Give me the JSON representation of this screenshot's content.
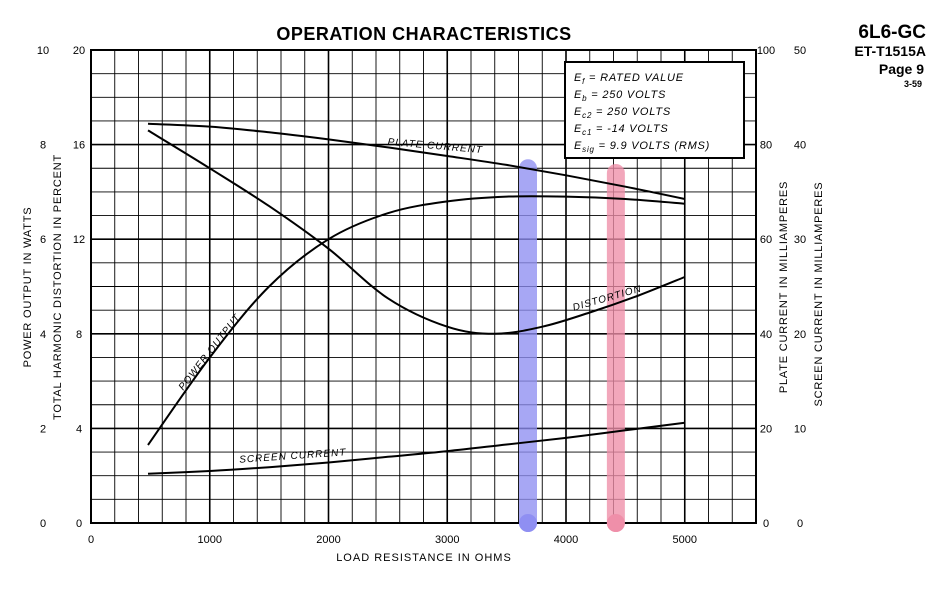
{
  "header": {
    "tube": "6L6-GC",
    "code": "ET-T1515A",
    "page": "Page 9",
    "date": "3-59"
  },
  "chart_data": {
    "type": "line",
    "title": "OPERATION CHARACTERISTICS",
    "xlabel": "LOAD RESISTANCE IN OHMS",
    "xlim": [
      0,
      5600
    ],
    "x_ticks": [
      0,
      1000,
      2000,
      3000,
      4000,
      5000
    ],
    "grid": true,
    "axes": {
      "power": {
        "label": "POWER OUTPUT IN WATTS",
        "lim": [
          0,
          10
        ],
        "ticks": [
          "0",
          "2",
          "4",
          "6",
          "8",
          "10"
        ]
      },
      "distortion": {
        "label": "TOTAL HARMONIC DISTORTION IN PERCENT",
        "lim": [
          0,
          20
        ],
        "ticks": [
          "0",
          "4",
          "8",
          "12",
          "16",
          "20"
        ]
      },
      "plate": {
        "label": "PLATE CURRENT IN MILLIAMPERES",
        "lim": [
          0,
          100
        ],
        "ticks": [
          "0",
          "20",
          "40",
          "60",
          "80",
          "100"
        ]
      },
      "screen": {
        "label": "SCREEN CURRENT IN MILLIAMPERES",
        "lim": [
          0,
          50
        ],
        "ticks": [
          "0",
          "10",
          "20",
          "30",
          "40",
          "50"
        ]
      }
    },
    "conditions": [
      {
        "sym": "E",
        "sub": "f",
        "text": "= RATED VALUE"
      },
      {
        "sym": "E",
        "sub": "b",
        "text": "= 250 VOLTS"
      },
      {
        "sym": "E",
        "sub": "c2",
        "text": "= 250 VOLTS"
      },
      {
        "sym": "E",
        "sub": "c1",
        "text": "= -14 VOLTS"
      },
      {
        "sym": "E",
        "sub": "sig",
        "text": "= 9.9 VOLTS (RMS)"
      }
    ],
    "series": [
      {
        "name": "PLATE CURRENT",
        "axis": "plate",
        "x": [
          480,
          1000,
          1500,
          2000,
          2500,
          3000,
          3500,
          4000,
          4500,
          5000
        ],
        "y": [
          84.4,
          83.8,
          82.6,
          81.1,
          79.4,
          77.6,
          75.7,
          73.5,
          71.1,
          68.5
        ]
      },
      {
        "name": "POWER OUTPUT",
        "axis": "power",
        "x": [
          480,
          1000,
          1500,
          2000,
          2500,
          3000,
          3500,
          4000,
          4500,
          5000
        ],
        "y": [
          1.65,
          3.5,
          5.0,
          6.0,
          6.55,
          6.8,
          6.9,
          6.9,
          6.85,
          6.75
        ]
      },
      {
        "name": "DISTORTION",
        "axis": "distortion",
        "x": [
          480,
          1000,
          1500,
          2000,
          2500,
          3000,
          3400,
          3800,
          4200,
          4600,
          5000
        ],
        "y": [
          16.6,
          15.0,
          13.4,
          11.6,
          9.5,
          8.3,
          8.0,
          8.3,
          8.9,
          9.6,
          10.4
        ]
      },
      {
        "name": "SCREEN CURRENT",
        "axis": "screen",
        "x": [
          480,
          1000,
          1500,
          2000,
          2500,
          3000,
          3500,
          4000,
          4500,
          5000
        ],
        "y": [
          5.2,
          5.5,
          5.9,
          6.4,
          7.0,
          7.6,
          8.3,
          9.0,
          9.8,
          10.6
        ]
      }
    ],
    "annotations": [
      {
        "shape": "vertical-band",
        "color": "#8f8ff2",
        "x": 3680,
        "y_range_plate": [
          0,
          75
        ]
      },
      {
        "shape": "vertical-band",
        "color": "#ef8fa9",
        "x": 4420,
        "y_range_plate": [
          0,
          74
        ]
      }
    ]
  }
}
